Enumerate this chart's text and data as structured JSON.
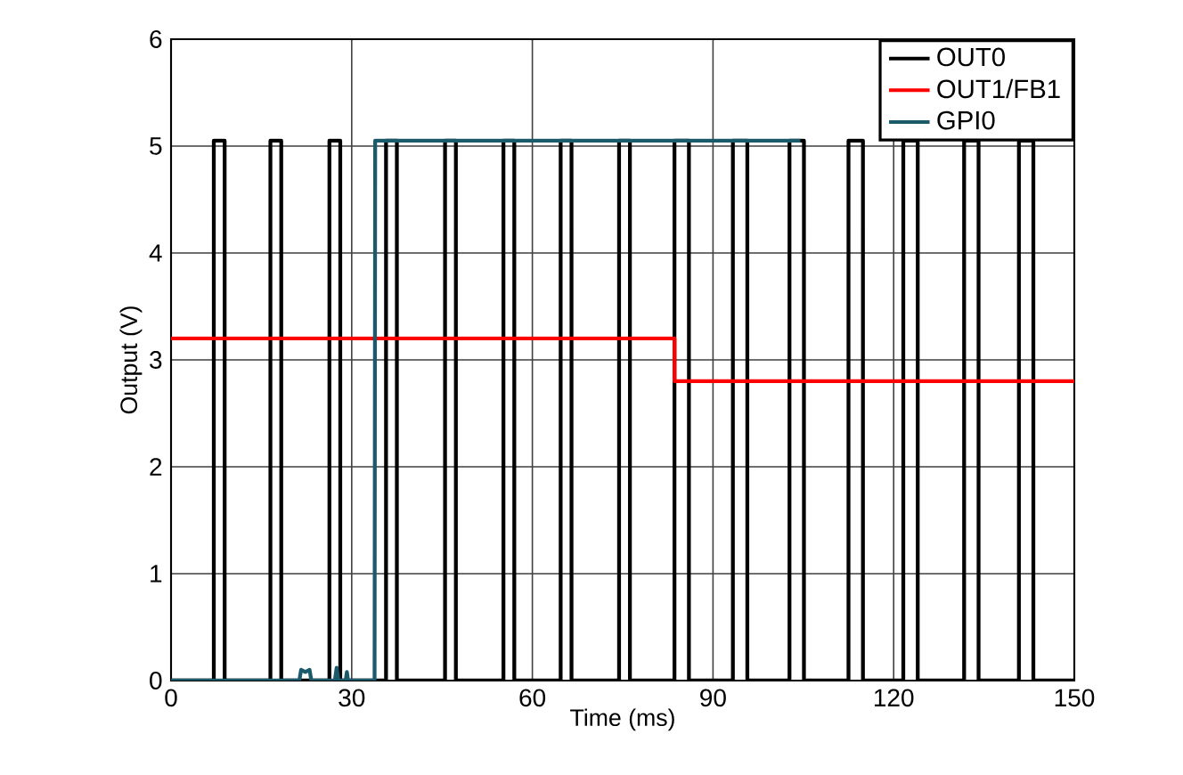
{
  "chart_data": {
    "type": "line",
    "xlabel": "Time (ms)",
    "ylabel": "Output (V)",
    "xlim": [
      0,
      150
    ],
    "ylim": [
      0,
      6
    ],
    "xticks": [
      0,
      30,
      60,
      90,
      120,
      150
    ],
    "yticks": [
      0,
      1,
      2,
      3,
      4,
      5,
      6
    ],
    "grid": true,
    "legend": "top right",
    "line_style": "solid",
    "marker": "none",
    "series": [
      {
        "name": "OUT0",
        "color": "#000000",
        "x": [
          0,
          7.1,
          7.1,
          8.9,
          8.9,
          16.5,
          16.5,
          18.3,
          18.3,
          26.3,
          26.3,
          28.1,
          28.1,
          35.7,
          35.7,
          37.5,
          37.5,
          45.5,
          45.5,
          47.3,
          47.3,
          55.2,
          55.2,
          57.0,
          57.0,
          64.7,
          64.7,
          66.5,
          66.5,
          74.4,
          74.4,
          76.2,
          76.2,
          83.6,
          83.6,
          86.0,
          86.0,
          93.3,
          93.3,
          95.7,
          95.7,
          102.7,
          102.7,
          105.1,
          105.1,
          112.5,
          112.5,
          114.9,
          114.9,
          121.6,
          121.6,
          124.0,
          124.0,
          131.7,
          131.7,
          134.1,
          134.1,
          140.8,
          140.8,
          143.2,
          143.2,
          150
        ],
        "values": [
          0,
          0,
          5.05,
          5.05,
          0,
          0,
          5.05,
          5.05,
          0,
          0,
          5.05,
          5.05,
          0,
          0,
          5.05,
          5.05,
          0,
          0,
          5.05,
          5.05,
          0,
          0,
          5.05,
          5.05,
          0,
          0,
          5.05,
          5.05,
          0,
          0,
          5.05,
          5.05,
          0,
          0,
          5.05,
          5.05,
          0,
          0,
          5.05,
          5.05,
          0,
          0,
          5.05,
          5.05,
          0,
          0,
          5.05,
          5.05,
          0,
          0,
          5.05,
          5.05,
          0,
          0,
          5.05,
          5.05,
          0,
          0,
          5.05,
          5.05,
          0,
          0
        ]
      },
      {
        "name": "OUT1/FB1",
        "color": "#ff0000",
        "x": [
          0,
          83.6,
          83.6,
          150
        ],
        "values": [
          3.2,
          3.2,
          2.8,
          2.8
        ]
      },
      {
        "name": "GPI0",
        "color": "#1a5a6a",
        "x": [
          0,
          21.3,
          21.6,
          22.3,
          23.0,
          23.3,
          27.2,
          27.5,
          27.8,
          29.0,
          29.2,
          29.4,
          33.8,
          33.9,
          104.5
        ],
        "values": [
          0,
          0,
          0.1,
          0.08,
          0.1,
          0,
          0,
          0.12,
          0,
          0,
          0.08,
          0,
          0,
          5.05,
          5.05
        ]
      }
    ]
  }
}
